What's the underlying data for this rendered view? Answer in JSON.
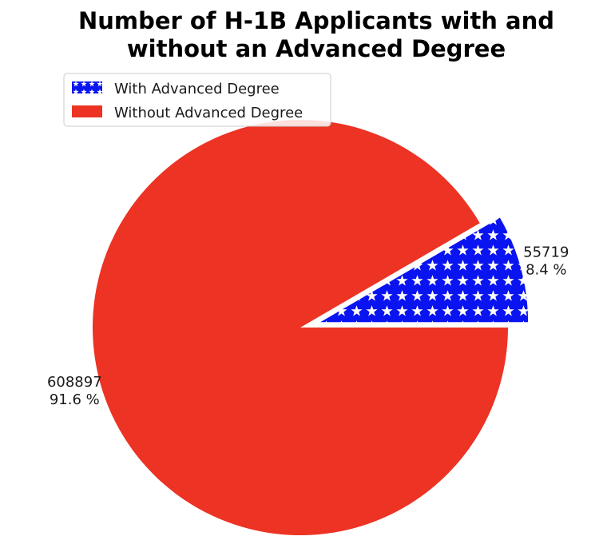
{
  "chart_data": {
    "type": "pie",
    "title": "Number of H-1B Applicants with and without an Advanced Degree",
    "title_lines": [
      "Number of H-1B Applicants with and",
      "without an Advanced Degree"
    ],
    "legend_placement": "top-left",
    "slices": [
      {
        "name": "With Advanced Degree",
        "value": 55719,
        "percent": 8.4,
        "value_label": "55719",
        "percent_label": "8.4 %",
        "color": "#0a14f0",
        "pattern": "white-stars",
        "exploded": true
      },
      {
        "name": "Without Advanced Degree",
        "value": 608897,
        "percent": 91.6,
        "value_label": "608897",
        "percent_label": "91.6 %",
        "color": "#ec3324",
        "pattern": "solid",
        "exploded": false
      }
    ],
    "start_angle_deg": 0,
    "direction": "counterclockwise"
  }
}
